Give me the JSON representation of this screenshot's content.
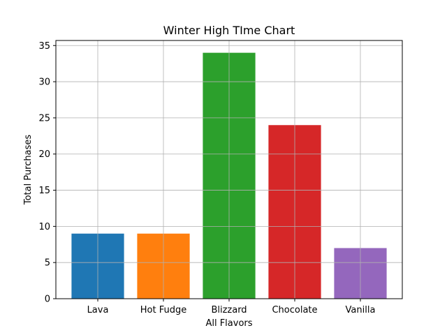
{
  "chart_data": {
    "type": "bar",
    "title": "Winter High TIme Chart",
    "xlabel": "All Flavors",
    "ylabel": "Total Purchases",
    "categories": [
      "Lava",
      "Hot Fudge",
      "Blizzard",
      "Chocolate",
      "Vanilla"
    ],
    "values": [
      9,
      9,
      34,
      24,
      7
    ],
    "colors": [
      "#1f77b4",
      "#ff7f0e",
      "#2ca02c",
      "#d62728",
      "#9467bd"
    ],
    "ylim": [
      0,
      35.7
    ],
    "yticks": [
      "0",
      "5",
      "10",
      "15",
      "20",
      "25",
      "30",
      "35"
    ],
    "grid": true
  }
}
